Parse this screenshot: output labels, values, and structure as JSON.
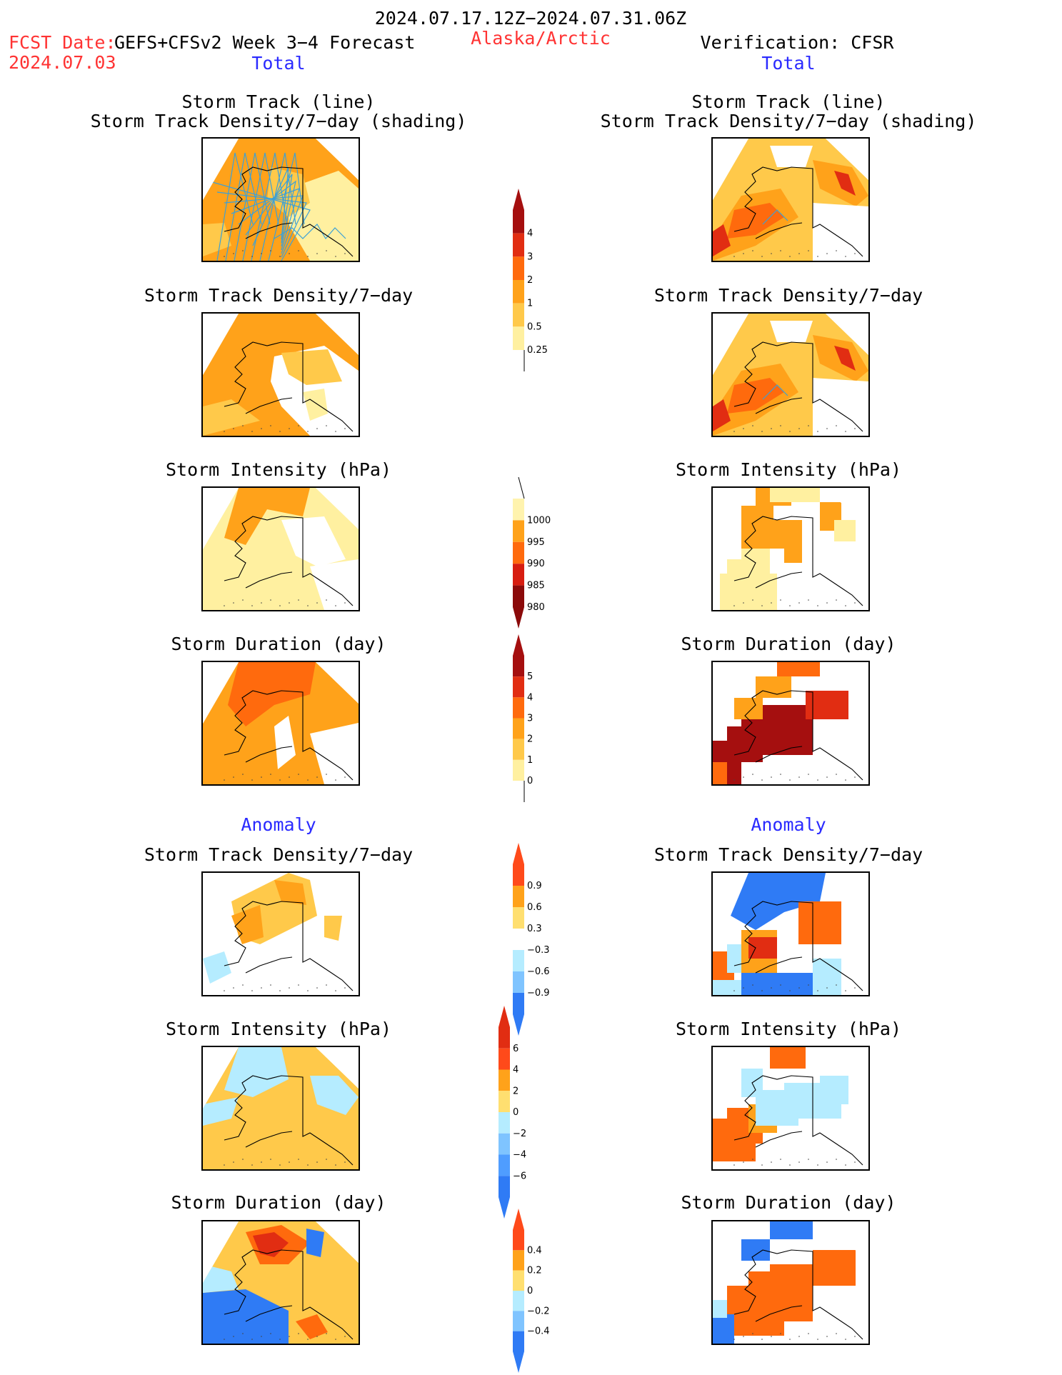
{
  "header": {
    "period": "2024.07.17.12Z−2024.07.31.06Z",
    "fcst_date_label": "FCST Date:",
    "fcst_date": "2024.07.03",
    "model_title": "GEFS+CFSv2 Week 3−4 Forecast",
    "region": "Alaska/Arctic",
    "verification": "Verification: CFSR"
  },
  "sections": {
    "total_left": "Total",
    "total_right": "Total",
    "anomaly_left": "Anomaly",
    "anomaly_right": "Anomaly"
  },
  "panel_titles": {
    "track_line": "Storm Track (line)",
    "track_shading": "Storm Track Density/7−day (shading)",
    "density": "Storm Track Density/7−day",
    "intensity": "Storm Intensity (hPa)",
    "duration": "Storm Duration (day)"
  },
  "colorbars": {
    "density_total": {
      "labels": [
        "4",
        "3",
        "2",
        "1",
        "0.5",
        "0.25"
      ],
      "colors": [
        "#a50f0f",
        "#e12d12",
        "#ff6a0d",
        "#ffa21a",
        "#ffc94a",
        "#fff0a0"
      ]
    },
    "intensity_total": {
      "labels": [
        "1000",
        "995",
        "990",
        "985",
        "980"
      ],
      "colors": [
        "#fff3ae",
        "#ffa21a",
        "#ff6a0d",
        "#d71d10",
        "#8b0a0a"
      ]
    },
    "duration_total": {
      "labels": [
        "5",
        "4",
        "3",
        "2",
        "1",
        "0"
      ],
      "colors": [
        "#a50f0f",
        "#e12d12",
        "#ff6a0d",
        "#ffa21a",
        "#ffc94a",
        "#fff0a0"
      ]
    },
    "density_anom": {
      "labels": [
        "0.9",
        "0.6",
        "0.3",
        "−0.3",
        "−0.6",
        "−0.9"
      ],
      "colors": [
        "#ff4a1a",
        "#ffa21a",
        "#ffdf70",
        "#ffffff",
        "#b5ecff",
        "#7fc4ff",
        "#2f7bf5"
      ]
    },
    "intensity_anom": {
      "labels": [
        "6",
        "4",
        "2",
        "0",
        "−2",
        "−4",
        "−6"
      ],
      "colors": [
        "#e12d12",
        "#ff4a1a",
        "#ffa21a",
        "#ffdf70",
        "#b5ecff",
        "#7fc4ff",
        "#4f9dff",
        "#2f7bf5"
      ]
    },
    "duration_anom": {
      "labels": [
        "0.4",
        "0.2",
        "0",
        "−0.2",
        "−0.4"
      ],
      "colors": [
        "#ff4a1a",
        "#ffa21a",
        "#ffdf70",
        "#b5ecff",
        "#7fc4ff",
        "#2f7bf5"
      ]
    }
  },
  "palette": {
    "pale_yellow": "#fff0a0",
    "light_orange": "#ffc94a",
    "orange": "#ffa21a",
    "dark_orange": "#ff6a0d",
    "red": "#e12d12",
    "dark_red": "#a50f0f",
    "light_blue": "#b5ecff",
    "blue": "#2f7bf5",
    "track_line": "#3aa0d8"
  }
}
